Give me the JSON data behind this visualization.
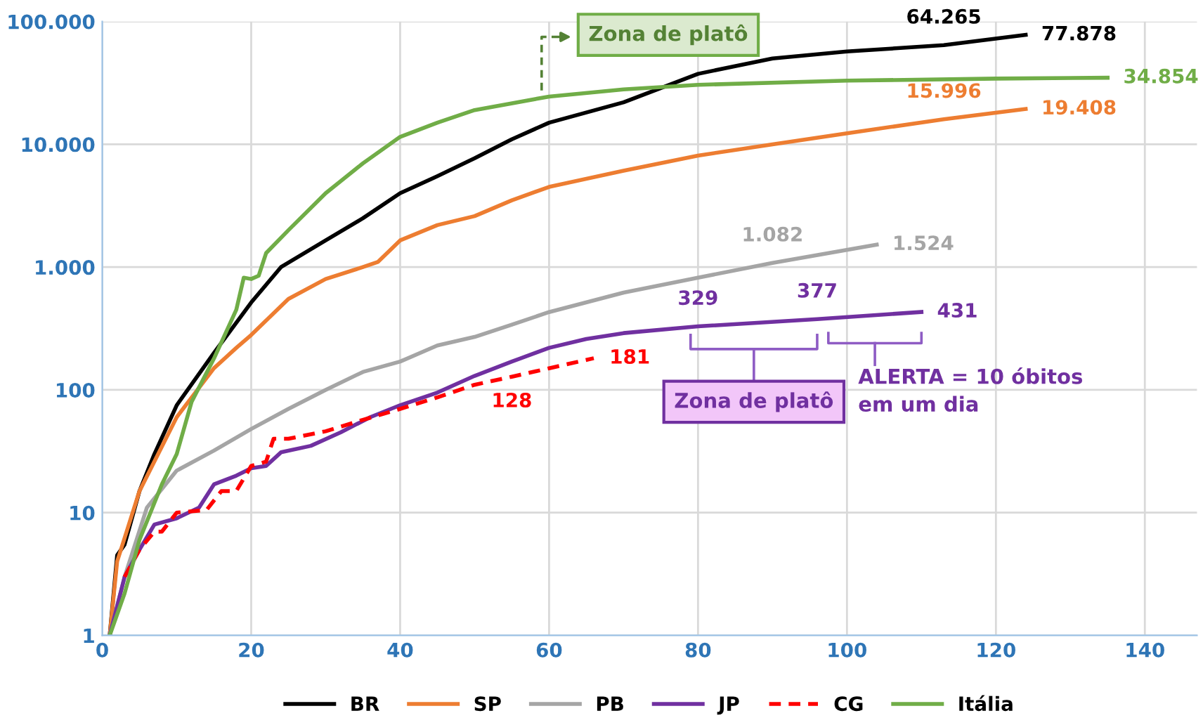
{
  "chart_data": {
    "type": "line",
    "log": "y",
    "grid": true,
    "legend": "bottom",
    "marker": "none",
    "xlim": [
      0,
      147
    ],
    "xticks": [
      0,
      20,
      40,
      60,
      80,
      100,
      120,
      140
    ],
    "ylim": [
      1,
      100000
    ],
    "yticks": [
      {
        "value": 1,
        "label": "1"
      },
      {
        "value": 10,
        "label": "10"
      },
      {
        "value": 100,
        "label": "100"
      },
      {
        "value": 1000,
        "label": "1.000"
      },
      {
        "value": 10000,
        "label": "10.000"
      },
      {
        "value": 100000,
        "label": "100.000"
      }
    ],
    "series": [
      {
        "name": "BR",
        "color": "#000000",
        "line_style": "solid",
        "x": [
          1,
          2,
          3,
          5,
          7,
          10,
          15,
          20,
          24,
          30,
          35,
          40,
          45,
          50,
          55,
          60,
          70,
          80,
          90,
          100,
          113,
          124
        ],
        "values": [
          1,
          4.5,
          5.5,
          15,
          30,
          75,
          200,
          515,
          1000,
          1650,
          2500,
          4000,
          5500,
          7700,
          11000,
          15000,
          22000,
          37500,
          50000,
          57000,
          64265,
          77878
        ],
        "value_labels": [
          null,
          null,
          null,
          null,
          null,
          null,
          null,
          null,
          null,
          null,
          null,
          null,
          null,
          null,
          null,
          null,
          null,
          null,
          null,
          null,
          "64.265",
          "77.878"
        ]
      },
      {
        "name": "SP",
        "color": "#ed7d31",
        "line_style": "solid",
        "x": [
          1,
          2,
          5,
          10,
          15,
          18,
          20,
          25,
          30,
          35,
          37,
          40,
          45,
          50,
          55,
          60,
          70,
          80,
          90,
          100,
          113,
          124
        ],
        "values": [
          1,
          4,
          15,
          60,
          150,
          220,
          280,
          550,
          800,
          1000,
          1100,
          1650,
          2200,
          2600,
          3500,
          4500,
          6100,
          8100,
          10000,
          12300,
          15996,
          19408
        ],
        "value_labels": [
          null,
          null,
          null,
          null,
          null,
          null,
          null,
          null,
          null,
          null,
          null,
          null,
          null,
          null,
          null,
          null,
          null,
          null,
          null,
          null,
          "15.996",
          "19.408"
        ]
      },
      {
        "name": "PB",
        "color": "#a5a5a5",
        "line_style": "solid",
        "x": [
          1,
          3,
          6,
          10,
          15,
          20,
          25,
          30,
          35,
          40,
          45,
          50,
          55,
          60,
          70,
          80,
          90,
          104
        ],
        "values": [
          1,
          3,
          11,
          22,
          32,
          48,
          70,
          100,
          140,
          170,
          230,
          270,
          340,
          430,
          620,
          820,
          1082,
          1524
        ],
        "value_labels": [
          null,
          null,
          null,
          null,
          null,
          null,
          null,
          null,
          null,
          null,
          null,
          null,
          null,
          null,
          null,
          null,
          "1.082",
          "1.524"
        ]
      },
      {
        "name": "JP",
        "color": "#7030a0",
        "line_style": "solid",
        "x": [
          1,
          3,
          5,
          7,
          10,
          13,
          15,
          18,
          20,
          22,
          24,
          28,
          32,
          36,
          40,
          45,
          50,
          55,
          60,
          65,
          70,
          80,
          96,
          110
        ],
        "values": [
          1,
          3,
          5,
          8,
          9,
          11,
          17,
          20,
          23,
          24,
          31,
          35,
          45,
          60,
          75,
          95,
          130,
          170,
          220,
          260,
          290,
          329,
          377,
          431
        ],
        "value_labels": [
          null,
          null,
          null,
          null,
          null,
          null,
          null,
          null,
          null,
          null,
          null,
          null,
          null,
          null,
          null,
          null,
          null,
          null,
          null,
          null,
          null,
          "329",
          "377",
          "431"
        ]
      },
      {
        "name": "CG",
        "color": "#ff0000",
        "line_style": "dashed",
        "x": [
          3,
          5,
          7,
          8,
          10,
          14,
          16,
          18,
          20,
          22,
          23,
          25,
          30,
          35,
          40,
          45,
          50,
          55,
          60,
          66
        ],
        "values": [
          3,
          5,
          7,
          7,
          10,
          10.5,
          15,
          15,
          24,
          26,
          40,
          40,
          46,
          57,
          70,
          87,
          110,
          128,
          150,
          181
        ],
        "value_labels": [
          null,
          null,
          null,
          null,
          null,
          null,
          null,
          null,
          null,
          null,
          null,
          null,
          null,
          null,
          null,
          null,
          null,
          "128",
          null,
          "181"
        ]
      },
      {
        "name": "Itália",
        "color": "#70ad47",
        "line_style": "solid",
        "x": [
          1,
          3,
          5,
          8,
          10,
          12,
          15,
          18,
          19,
          20,
          21,
          22,
          25,
          30,
          35,
          40,
          45,
          50,
          60,
          70,
          80,
          100,
          120,
          135
        ],
        "values": [
          1,
          2.2,
          6,
          17,
          30,
          80,
          180,
          450,
          820,
          800,
          850,
          1300,
          2000,
          4000,
          7000,
          11500,
          15000,
          19000,
          24500,
          28000,
          30500,
          33000,
          34300,
          34854
        ],
        "value_labels": [
          null,
          null,
          null,
          null,
          null,
          null,
          null,
          null,
          null,
          null,
          null,
          null,
          null,
          null,
          null,
          null,
          null,
          null,
          null,
          null,
          null,
          null,
          null,
          "34.854"
        ]
      }
    ],
    "annotations": [
      "Zona de platô",
      "Zona de platô",
      "ALERTA = 10 óbitos\nem um dia"
    ]
  }
}
